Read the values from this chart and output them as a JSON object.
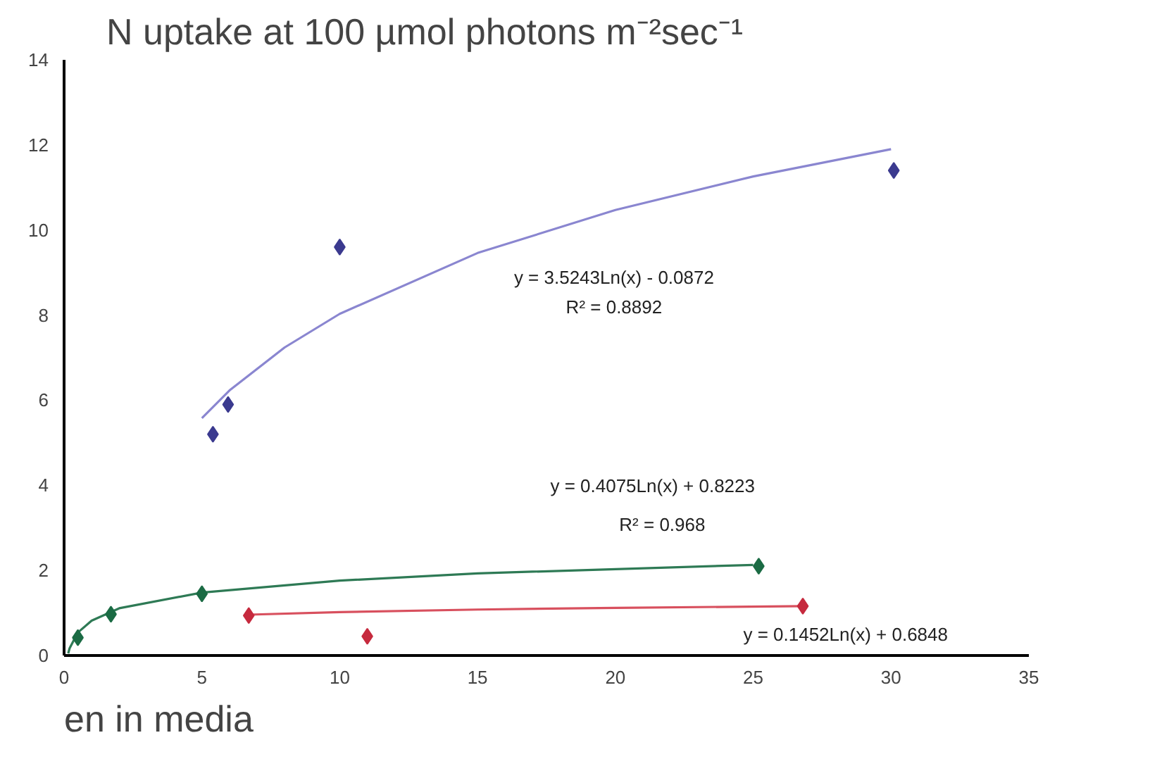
{
  "chart_data": {
    "type": "scatter",
    "title": "N uptake at 100 µmol photons m⁻²sec⁻¹",
    "xlabel": "en in media",
    "xlim": [
      0,
      35
    ],
    "xticks": [
      0,
      5,
      10,
      15,
      20,
      25,
      30,
      35
    ],
    "ylim": [
      0,
      14
    ],
    "yticks": [
      0,
      2,
      4,
      6,
      8,
      10,
      12,
      14
    ],
    "grid": false,
    "marker": "diamond",
    "series": [
      {
        "type": "line",
        "marker": "none",
        "color": "#8a86d0",
        "x": [
          5,
          6,
          8,
          10,
          15,
          20,
          25,
          30
        ],
        "values": [
          5.58,
          6.23,
          7.24,
          8.03,
          9.46,
          10.47,
          11.26,
          11.9
        ]
      },
      {
        "type": "line",
        "marker": "none",
        "color": "#2e7a55",
        "x": [
          0.15,
          0.2,
          0.5,
          1,
          2,
          5,
          10,
          15,
          25
        ],
        "values": [
          0.05,
          0.17,
          0.54,
          0.82,
          1.11,
          1.48,
          1.76,
          1.93,
          2.13
        ]
      },
      {
        "type": "line",
        "marker": "none",
        "color": "#d8505e",
        "x": [
          6.7,
          10,
          15,
          20,
          26.8
        ],
        "values": [
          0.96,
          1.02,
          1.08,
          1.12,
          1.16
        ]
      },
      {
        "color": "#3b3a8f",
        "x": [
          5.4,
          5.95,
          10,
          30.1
        ],
        "values": [
          5.2,
          5.9,
          9.6,
          11.4
        ]
      },
      {
        "color": "#1b6b44",
        "x": [
          0.5,
          1.7,
          5,
          25.2
        ],
        "values": [
          0.42,
          0.97,
          1.45,
          2.1
        ]
      },
      {
        "color": "#c62a3e",
        "x": [
          6.7,
          11,
          26.8
        ],
        "values": [
          0.94,
          0.45,
          1.16
        ]
      }
    ],
    "annotations": [
      "y = 3.5243Ln(x) - 0.0872",
      "R² = 0.8892",
      "y = 0.4075Ln(x) + 0.8223",
      "R² = 0.968",
      "y = 0.1452Ln(x) + 0.6848"
    ]
  }
}
